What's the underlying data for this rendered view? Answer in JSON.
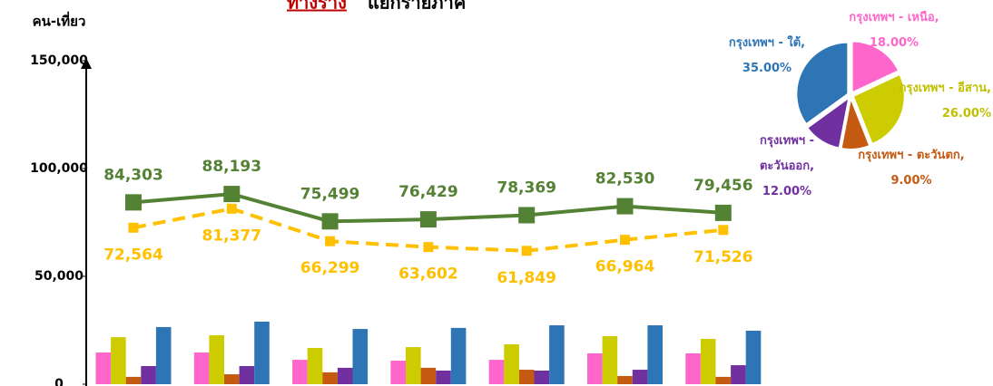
{
  "chart_data": {
    "type": "combo",
    "title_highlight": "ทางราง",
    "title": "แยกรายภาค",
    "y_axis_label": "คน-เที่ยว",
    "ylim": [
      0,
      150000
    ],
    "yticks": [
      {
        "value": 0,
        "label": "0"
      },
      {
        "value": 50000,
        "label": "50,000"
      },
      {
        "value": 100000,
        "label": "100,000"
      },
      {
        "value": 150000,
        "label": "150,000"
      }
    ],
    "grid": false,
    "line_series": [
      {
        "color": "#548235",
        "style": "solid",
        "values": [
          84303,
          88193,
          75499,
          76429,
          78369,
          82530,
          79456
        ],
        "value_labels": [
          "84,303",
          "88,193",
          "75,499",
          "76,429",
          "78,369",
          "82,530",
          "79,456"
        ]
      },
      {
        "color": "#ffc000",
        "style": "dashed",
        "values": [
          72564,
          81377,
          66299,
          63602,
          61849,
          66964,
          71526
        ],
        "value_labels": [
          "72,564",
          "81,377",
          "66,299",
          "63,602",
          "61,849",
          "66,964",
          "71,526"
        ]
      }
    ],
    "bar_series": [
      {
        "color": "#ff66cc",
        "values": [
          14700,
          14700,
          11300,
          10900,
          11300,
          14300,
          14300
        ]
      },
      {
        "color": "#cccc00",
        "values": [
          21800,
          22700,
          16800,
          17200,
          18500,
          22300,
          21000
        ]
      },
      {
        "color": "#c55a11",
        "values": [
          3400,
          4600,
          5500,
          7600,
          6700,
          3800,
          3400
        ]
      },
      {
        "color": "#7030a0",
        "values": [
          8400,
          8400,
          7600,
          6300,
          6300,
          6700,
          8800
        ]
      },
      {
        "color": "#2e75b6",
        "values": [
          26500,
          29000,
          25600,
          26100,
          27300,
          27300,
          24800
        ]
      }
    ],
    "pie": {
      "type": "pie",
      "labels": [
        "กรุงเทพฯ - เหนือ, 18.00%",
        "กรุงเทพฯ - อีสาน, 26.00%",
        "กรุงเทพฯ - ตะวันตก, 9.00%",
        "กรุงเทพฯ - ตะวันออก, 12.00%",
        "กรุงเทพฯ - ใต้, 35.00%"
      ],
      "values": [
        18,
        26,
        9,
        12,
        35
      ],
      "colors": [
        "#ff66cc",
        "#cccc00",
        "#c55a11",
        "#7030a0",
        "#2e75b6"
      ]
    }
  }
}
